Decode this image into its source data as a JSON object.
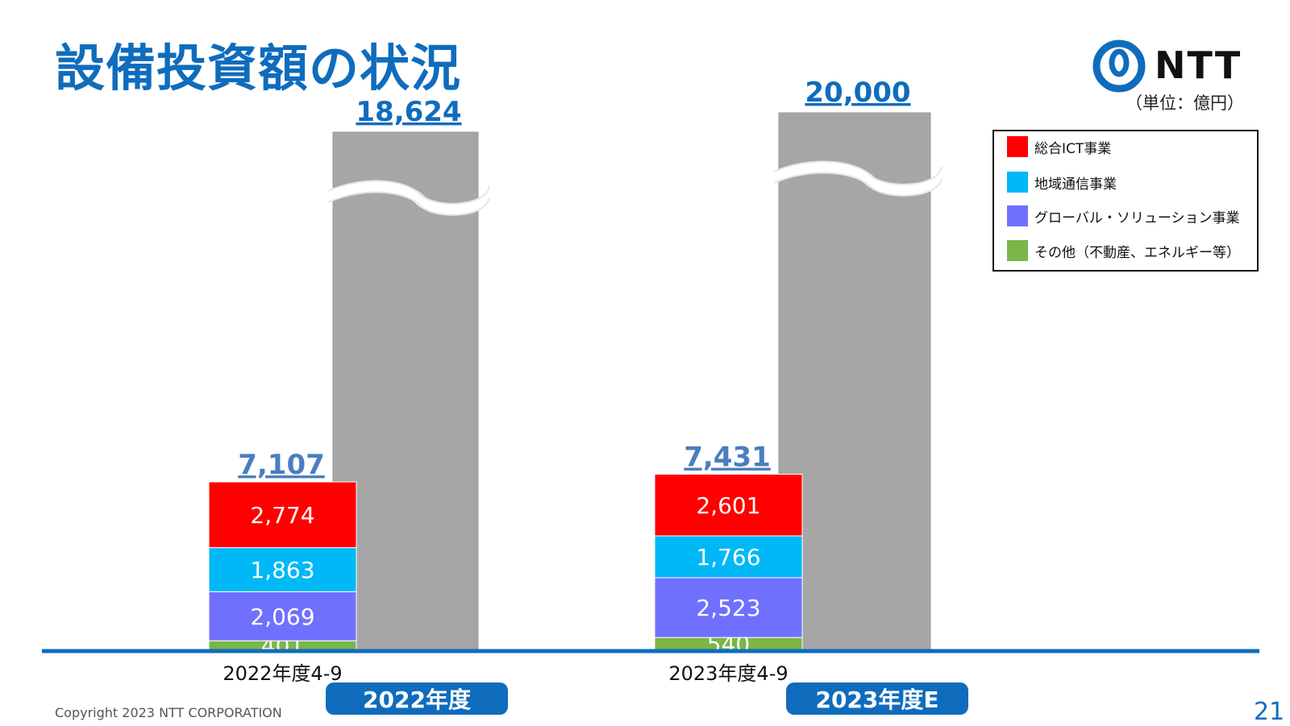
{
  "title": "設備投資額の状況",
  "logo": {
    "text": "NTT"
  },
  "unit_label": "（単位：億円）",
  "copyright": "Copyright 2023 NTT CORPORATION",
  "page_number": "21",
  "colors": {
    "accent": "#0F6CBD",
    "total_label": "#4A7EBF",
    "full_year_bar": "#A6A6A6",
    "axis": "#0F6CBD"
  },
  "year_labels": [
    "2022年度",
    "2023年度E"
  ],
  "chart_data": {
    "type": "bar",
    "stacked": true,
    "categories": [
      "2022年度4-9",
      "2023年度4-9"
    ],
    "series": [
      {
        "name": "その他（不動産、エネルギー等）",
        "color": "#7AB648",
        "values": [
          401,
          540
        ]
      },
      {
        "name": "グローバル・ソリューション事業",
        "color": "#7070FF",
        "values": [
          2069,
          2523
        ]
      },
      {
        "name": "地域通信事業",
        "color": "#00B8F5",
        "values": [
          1863,
          1766
        ]
      },
      {
        "name": "総合ICT事業",
        "color": "#FF0000",
        "values": [
          2774,
          2601
        ]
      }
    ],
    "half_year_totals": [
      "7,107",
      "7,431"
    ],
    "full_year_totals": [
      "18,624",
      "20,000"
    ],
    "full_year_values": [
      18624,
      20000
    ],
    "axis_break": true,
    "ylim": [
      0,
      7900
    ],
    "legend_position": "top-right",
    "grid": false
  }
}
